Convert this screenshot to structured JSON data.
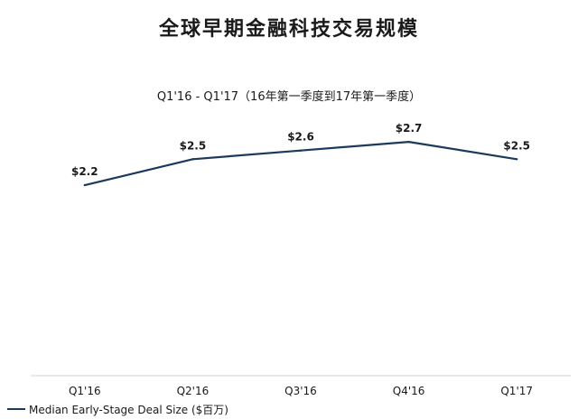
{
  "chart_data": {
    "type": "line",
    "title": "全球早期金融科技交易规模",
    "subtitle": "Q1'16 - Q1'17（16年第一季度到17年第一季度）",
    "categories": [
      "Q1'16",
      "Q2'16",
      "Q3'16",
      "Q4'16",
      "Q1'17"
    ],
    "series": [
      {
        "name": "Median Early-Stage Deal Size ($百万)",
        "values": [
          2.2,
          2.5,
          2.6,
          2.7,
          2.5
        ],
        "labels": [
          "$2.2",
          "$2.5",
          "$2.6",
          "$2.7",
          "$2.5"
        ],
        "color": "#1b3a5c"
      }
    ],
    "ylim": [
      0,
      3.4
    ],
    "grid": false,
    "legend": "bottom-left"
  },
  "colors": {
    "axis": "#d0d0d0",
    "line": "#1b3a5c"
  }
}
